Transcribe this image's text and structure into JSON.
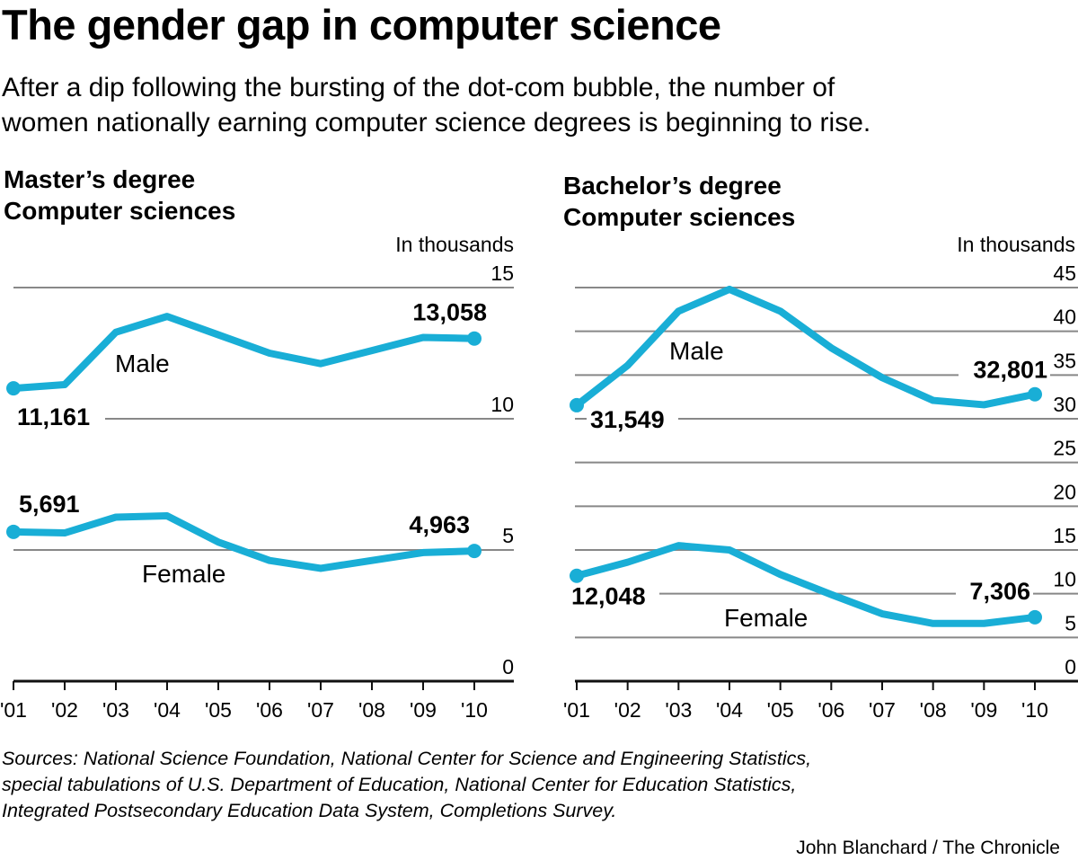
{
  "title": "The gender gap in computer science",
  "subtitle": [
    "After a dip following the bursting of the dot-com bubble, the number of",
    "women nationally earning computer science degrees is beginning to rise."
  ],
  "sources": [
    "Sources: National Science Foundation, National Center for Science and Engineering Statistics,",
    "special tabulations of U.S. Department of Education, National Center for Education Statistics,",
    "Integrated Postsecondary Education Data System, Completions Survey."
  ],
  "credit": "John Blanchard / The Chronicle",
  "line_color": "#19aed6",
  "chart_data": [
    {
      "type": "line",
      "title": [
        "Master’s degree",
        "Computer sciences"
      ],
      "ylabel": "In thousands",
      "categories": [
        "'01",
        "'02",
        "'03",
        "'04",
        "'05",
        "'06",
        "'07",
        "'08",
        "'09",
        "'10"
      ],
      "ylim": [
        0,
        15
      ],
      "yticks": [
        "0",
        "5",
        "10",
        "15"
      ],
      "grid": true,
      "series": [
        {
          "name": "Male",
          "values": [
            11.161,
            11.3,
            13.3,
            13.9,
            13.2,
            12.5,
            12.1,
            12.6,
            13.1,
            13.058
          ],
          "start_label": "11,161",
          "end_label": "13,058"
        },
        {
          "name": "Female",
          "values": [
            5.691,
            5.65,
            6.25,
            6.3,
            5.3,
            4.6,
            4.3,
            4.6,
            4.9,
            4.963
          ],
          "start_label": "5,691",
          "end_label": "4,963"
        }
      ]
    },
    {
      "type": "line",
      "title": [
        "Bachelor’s degree",
        "Computer sciences"
      ],
      "ylabel": "In thousands",
      "categories": [
        "'01",
        "'02",
        "'03",
        "'04",
        "'05",
        "'06",
        "'07",
        "'08",
        "'09",
        "'10"
      ],
      "ylim": [
        0,
        45
      ],
      "yticks": [
        "0",
        "5",
        "10",
        "15",
        "20",
        "25",
        "30",
        "35",
        "40",
        "45"
      ],
      "grid": true,
      "series": [
        {
          "name": "Male",
          "values": [
            31.549,
            36.1,
            42.3,
            44.8,
            42.3,
            38.1,
            34.7,
            32.1,
            31.6,
            32.801
          ],
          "start_label": "31,549",
          "end_label": "32,801"
        },
        {
          "name": "Female",
          "values": [
            12.048,
            13.6,
            15.5,
            15.0,
            12.2,
            9.9,
            7.7,
            6.6,
            6.6,
            7.306
          ],
          "start_label": "12,048",
          "end_label": "7,306"
        }
      ]
    }
  ]
}
